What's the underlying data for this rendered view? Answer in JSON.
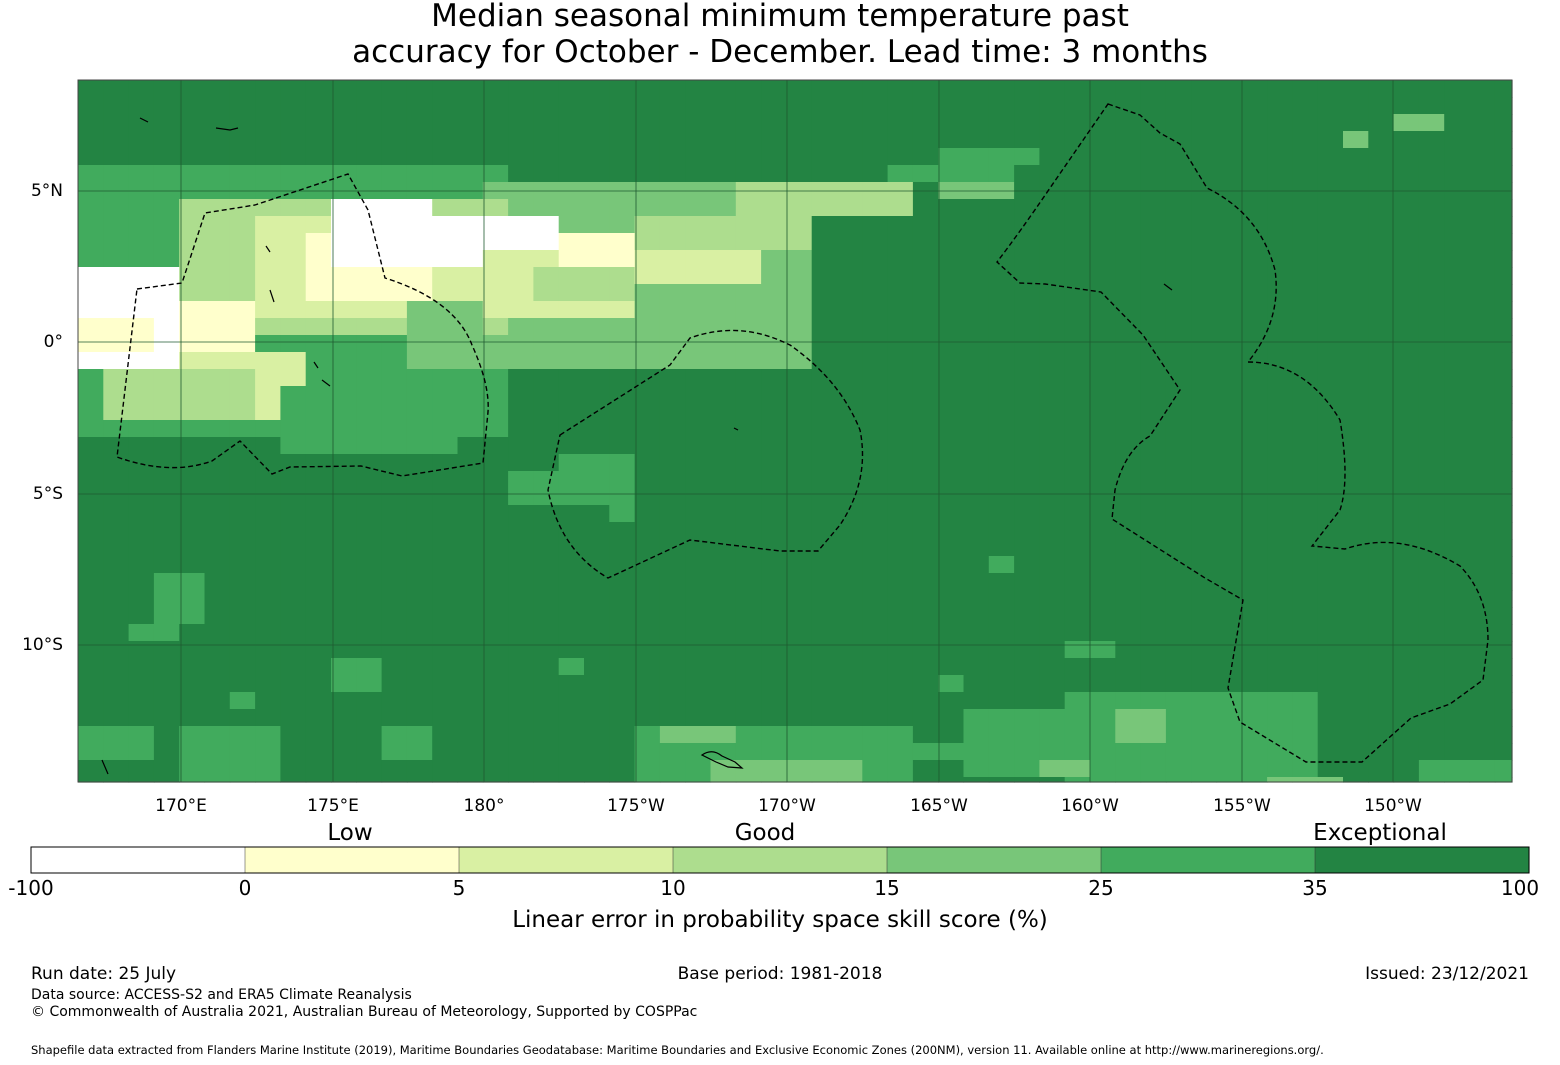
{
  "title_line1": "Median seasonal minimum temperature past",
  "title_line2": "accuracy for October - December. Lead time: 3 months",
  "map": {
    "lon_labels": [
      "170°E",
      "175°E",
      "180°",
      "175°W",
      "170°W",
      "165°W",
      "160°W",
      "155°W",
      "150°W"
    ],
    "lat_labels": [
      "5°N",
      "0°",
      "5°S",
      "10°S"
    ],
    "colors": {
      "c0": "#ffffff",
      "c1": "#ffffcc",
      "c2": "#d9f0a3",
      "c3": "#addd8e",
      "c4": "#78c679",
      "c5": "#41ab5d",
      "c6": "#238443"
    }
  },
  "colorbar": {
    "categories": [
      "Low",
      "Good",
      "Exceptional"
    ],
    "ticks": [
      "-100",
      "0",
      "5",
      "10",
      "15",
      "25",
      "35",
      "100"
    ],
    "colors": [
      "#ffffff",
      "#ffffcc",
      "#d9f0a3",
      "#addd8e",
      "#78c679",
      "#41ab5d",
      "#238443"
    ],
    "label": "Linear error in probability space skill score (%)"
  },
  "footer": {
    "run_date": "Run date: 25 July",
    "base_period": "Base period: 1981-2018",
    "issued": "Issued: 23/12/2021",
    "data_source": "Data source: ACCESS-S2 and ERA5 Climate Reanalysis",
    "copyright": "© Commonwealth of Australia 2021, Australian Bureau of Meteorology, Supported by COSPPac",
    "shapefile": "Shapefile data extracted from Flanders Marine Institute (2019), Maritime Boundaries Geodatabase: Maritime Boundaries and Exclusive Economic Zones (200NM), version 11. Available online at http://www.marineregions.org/."
  }
}
